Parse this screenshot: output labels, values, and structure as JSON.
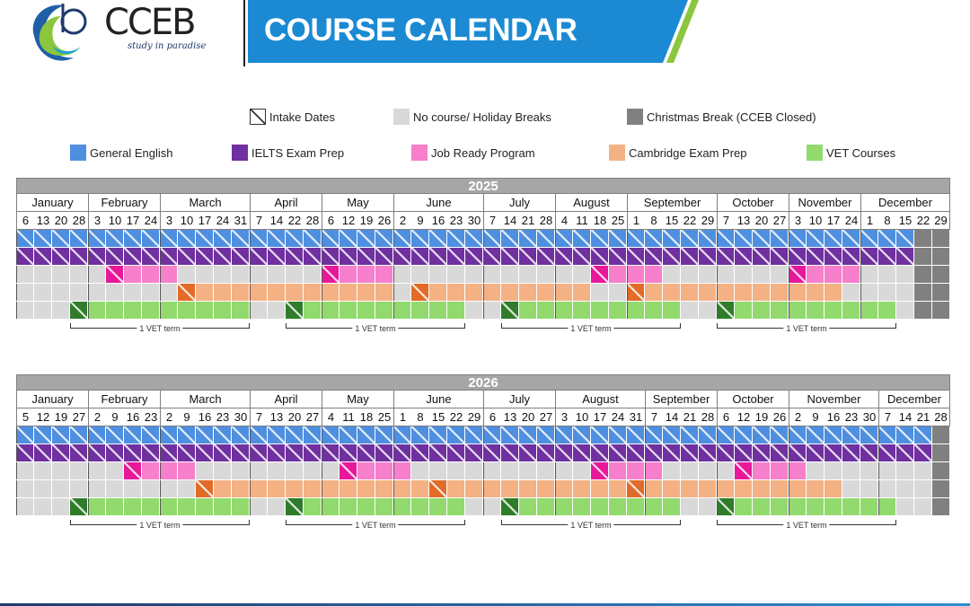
{
  "header": {
    "brand": "CCEB",
    "tagline": "study in paradise",
    "title": "COURSE CALENDAR"
  },
  "colors": {
    "general_english": "#4f8fe0",
    "ielts": "#7030a0",
    "job_ready": "#f77fcb",
    "job_ready_intake": "#e8189a",
    "cambridge": "#f4b183",
    "cambridge_intake": "#e26b27",
    "vet": "#92d96e",
    "vet_intake": "#2f7d2a",
    "no_course": "#d9d9d9",
    "christmas": "#808080",
    "banner": "#1b8ad3",
    "header_row": "#a6a6a6"
  },
  "legend": [
    {
      "label": "Intake Dates",
      "key": "intake"
    },
    {
      "label": "No course/ Holiday Breaks",
      "key": "no_course"
    },
    {
      "label": "Christmas Break (CCEB Closed)",
      "key": "christmas"
    },
    {
      "label": "General English",
      "key": "general_english"
    },
    {
      "label": "IELTS Exam Prep",
      "key": "ielts"
    },
    {
      "label": "Job Ready Program",
      "key": "job_ready"
    },
    {
      "label": "Cambridge Exam Prep",
      "key": "cambridge"
    },
    {
      "label": "VET Courses",
      "key": "vet"
    }
  ],
  "term_label": "1 VET term",
  "calendars": [
    {
      "year": "2025",
      "months": [
        {
          "name": "January",
          "days": [
            "6",
            "13",
            "20",
            "28"
          ]
        },
        {
          "name": "February",
          "days": [
            "3",
            "10",
            "17",
            "24"
          ]
        },
        {
          "name": "March",
          "days": [
            "3",
            "10",
            "17",
            "24",
            "31"
          ]
        },
        {
          "name": "April",
          "days": [
            "7",
            "14",
            "22",
            "28"
          ]
        },
        {
          "name": "May",
          "days": [
            "6",
            "12",
            "19",
            "26"
          ]
        },
        {
          "name": "June",
          "days": [
            "2",
            "9",
            "16",
            "23",
            "30"
          ]
        },
        {
          "name": "July",
          "days": [
            "7",
            "14",
            "21",
            "28"
          ]
        },
        {
          "name": "August",
          "days": [
            "4",
            "11",
            "18",
            "25"
          ]
        },
        {
          "name": "September",
          "days": [
            "1",
            "8",
            "15",
            "22",
            "29"
          ]
        },
        {
          "name": "October",
          "days": [
            "7",
            "13",
            "20",
            "27"
          ]
        },
        {
          "name": "November",
          "days": [
            "3",
            "10",
            "17",
            "24"
          ]
        },
        {
          "name": "December",
          "days": [
            "1",
            "8",
            "15",
            "22",
            "29"
          ]
        }
      ],
      "rows": [
        {
          "course": "general_english",
          "active": [
            0,
            49
          ],
          "intakes": "all"
        },
        {
          "course": "ielts",
          "active": [
            0,
            49
          ],
          "intakes": "all"
        },
        {
          "course": "job_ready",
          "active": [
            [
              5,
              8
            ],
            [
              17,
              20
            ],
            [
              32,
              35
            ],
            [
              43,
              46
            ]
          ],
          "intakes": [
            5,
            17,
            32,
            43
          ]
        },
        {
          "course": "cambridge",
          "active": [
            [
              9,
              20
            ],
            [
              22,
              31
            ],
            [
              34,
              45
            ]
          ],
          "intakes": [
            9,
            22,
            34
          ]
        },
        {
          "course": "vet",
          "active": [
            [
              3,
              12
            ],
            [
              15,
              24
            ],
            [
              27,
              36
            ],
            [
              39,
              48
            ]
          ],
          "intakes": [
            3,
            15,
            27,
            39
          ]
        }
      ],
      "christmas": [
        50,
        51
      ],
      "terms": [
        [
          3,
          12
        ],
        [
          15,
          24
        ],
        [
          27,
          36
        ],
        [
          39,
          48
        ]
      ]
    },
    {
      "year": "2026",
      "months": [
        {
          "name": "January",
          "days": [
            "5",
            "12",
            "19",
            "27"
          ]
        },
        {
          "name": "February",
          "days": [
            "2",
            "9",
            "16",
            "23"
          ]
        },
        {
          "name": "March",
          "days": [
            "2",
            "9",
            "16",
            "23",
            "30"
          ]
        },
        {
          "name": "April",
          "days": [
            "7",
            "13",
            "20",
            "27"
          ]
        },
        {
          "name": "May",
          "days": [
            "4",
            "11",
            "18",
            "25"
          ]
        },
        {
          "name": "June",
          "days": [
            "1",
            "8",
            "15",
            "22",
            "29"
          ]
        },
        {
          "name": "July",
          "days": [
            "6",
            "13",
            "20",
            "27"
          ]
        },
        {
          "name": "August",
          "days": [
            "3",
            "10",
            "17",
            "24",
            "31"
          ]
        },
        {
          "name": "September",
          "days": [
            "7",
            "14",
            "21",
            "28"
          ]
        },
        {
          "name": "October",
          "days": [
            "6",
            "12",
            "19",
            "26"
          ]
        },
        {
          "name": "November",
          "days": [
            "2",
            "9",
            "16",
            "23",
            "30"
          ]
        },
        {
          "name": "December",
          "days": [
            "7",
            "14",
            "21",
            "28"
          ]
        }
      ],
      "rows": [
        {
          "course": "general_english",
          "active": [
            0,
            50
          ],
          "intakes": "all"
        },
        {
          "course": "ielts",
          "active": [
            0,
            50
          ],
          "intakes": "all"
        },
        {
          "course": "job_ready",
          "active": [
            [
              6,
              9
            ],
            [
              18,
              21
            ],
            [
              32,
              35
            ],
            [
              40,
              43
            ]
          ],
          "intakes": [
            6,
            18,
            32,
            40
          ]
        },
        {
          "course": "cambridge",
          "active": [
            [
              10,
              22
            ],
            [
              23,
              33
            ],
            [
              34,
              45
            ]
          ],
          "intakes": [
            10,
            23,
            34
          ]
        },
        {
          "course": "vet",
          "active": [
            [
              3,
              12
            ],
            [
              15,
              24
            ],
            [
              27,
              36
            ],
            [
              39,
              48
            ]
          ],
          "intakes": [
            3,
            15,
            27,
            39
          ]
        }
      ],
      "christmas": [
        51,
        51
      ],
      "terms": [
        [
          3,
          12
        ],
        [
          15,
          24
        ],
        [
          27,
          36
        ],
        [
          39,
          48
        ]
      ]
    }
  ]
}
